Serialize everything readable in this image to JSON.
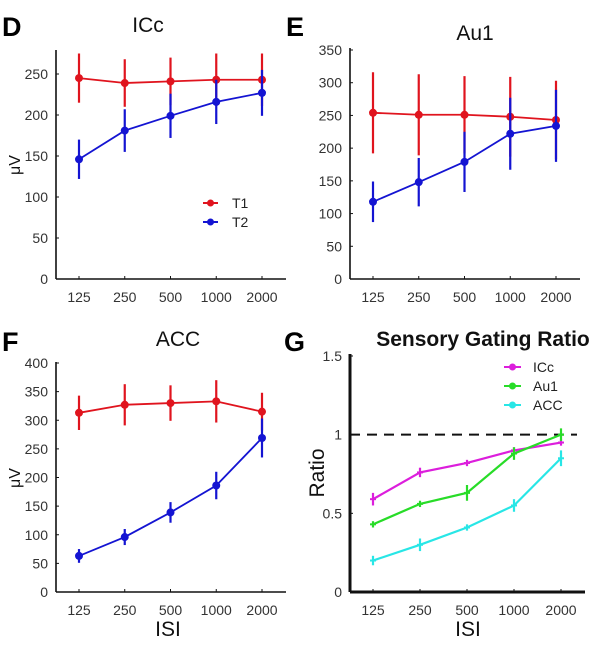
{
  "chart_data": [
    {
      "type": "line",
      "panel": "D",
      "title": "ICc",
      "xlabel": "",
      "ylabel": "μV",
      "categories": [
        "125",
        "250",
        "500",
        "1000",
        "2000"
      ],
      "yticks": [
        "0",
        "50",
        "100",
        "150",
        "200",
        "250"
      ],
      "ylim": [
        0,
        280
      ],
      "legend": "middle-right",
      "series": [
        {
          "name": "T1",
          "color": "#e0141e",
          "values": [
            245,
            239,
            241,
            243,
            243
          ],
          "errors": [
            30,
            29,
            29,
            32,
            32
          ]
        },
        {
          "name": "T2",
          "color": "#1414d2",
          "values": [
            146,
            181,
            199,
            216,
            227
          ],
          "errors": [
            24,
            26,
            27,
            27,
            28
          ]
        }
      ]
    },
    {
      "type": "line",
      "panel": "E",
      "title": "Au1",
      "xlabel": "",
      "ylabel": "",
      "categories": [
        "125",
        "250",
        "500",
        "1000",
        "2000"
      ],
      "yticks": [
        "0",
        "50",
        "100",
        "150",
        "200",
        "250",
        "300",
        "350"
      ],
      "ylim": [
        0,
        350
      ],
      "legend": "none",
      "series": [
        {
          "name": "T1",
          "color": "#e0141e",
          "values": [
            254,
            251,
            251,
            248,
            243
          ],
          "errors": [
            62,
            62,
            59,
            61,
            60
          ]
        },
        {
          "name": "T2",
          "color": "#1414d2",
          "values": [
            118,
            148,
            179,
            222,
            234
          ],
          "errors": [
            31,
            37,
            46,
            55,
            55
          ]
        }
      ]
    },
    {
      "type": "line",
      "panel": "F",
      "title": "ACC",
      "xlabel": "ISI",
      "ylabel": "μV",
      "categories": [
        "125",
        "250",
        "500",
        "1000",
        "2000"
      ],
      "yticks": [
        "0",
        "50",
        "100",
        "150",
        "200",
        "250",
        "300",
        "350",
        "400"
      ],
      "ylim": [
        0,
        400
      ],
      "legend": "none",
      "series": [
        {
          "name": "T1",
          "color": "#e0141e",
          "values": [
            313,
            327,
            330,
            333,
            315
          ],
          "errors": [
            30,
            36,
            31,
            37,
            33
          ]
        },
        {
          "name": "T2",
          "color": "#1414d2",
          "values": [
            63,
            96,
            139,
            186,
            269
          ],
          "errors": [
            12,
            14,
            18,
            24,
            34
          ]
        }
      ]
    },
    {
      "type": "line",
      "panel": "G",
      "title": "Sensory Gating Ratio",
      "xlabel": "ISI",
      "ylabel": "Ratio",
      "categories": [
        "125",
        "250",
        "500",
        "1000",
        "2000"
      ],
      "yticks": [
        "0",
        "0.5",
        "1",
        "1.5"
      ],
      "ylim": [
        0,
        1.5
      ],
      "legend": "top-right",
      "reference_line": {
        "y": 1,
        "style": "dashed"
      },
      "series": [
        {
          "name": "ICc",
          "color": "#dc1edc",
          "values": [
            0.59,
            0.76,
            0.82,
            0.9,
            0.95
          ],
          "errors": [
            0.04,
            0.03,
            0.02,
            0.02,
            0.02
          ]
        },
        {
          "name": "Au1",
          "color": "#28dc28",
          "values": [
            0.43,
            0.56,
            0.63,
            0.88,
            1.0
          ],
          "errors": [
            0.02,
            0.02,
            0.05,
            0.04,
            0.04
          ]
        },
        {
          "name": "ACC",
          "color": "#28e6e6",
          "values": [
            0.2,
            0.3,
            0.41,
            0.55,
            0.85
          ],
          "errors": [
            0.03,
            0.04,
            0.02,
            0.04,
            0.05
          ]
        }
      ]
    }
  ],
  "panel_letters": [
    "D",
    "E",
    "F",
    "G"
  ]
}
